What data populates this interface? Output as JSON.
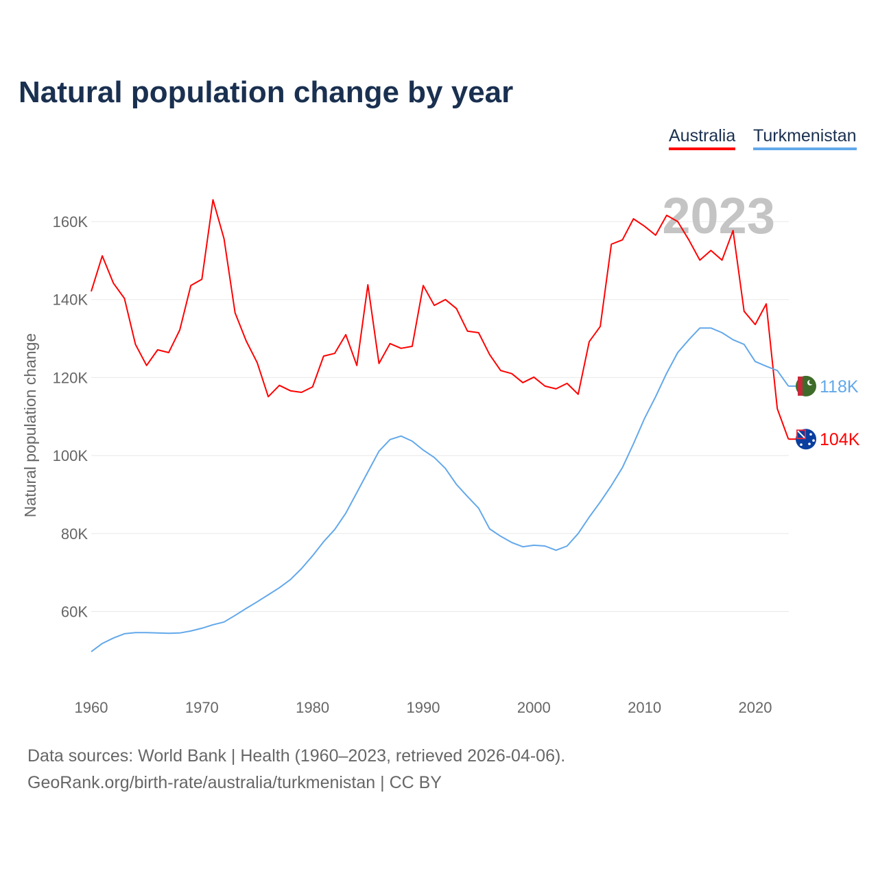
{
  "title": "Natural population change by year",
  "footer": {
    "line1": "Data sources: World Bank | Health (1960–2023, retrieved 2026-04-06).",
    "line2": "GeoRank.org/birth-rate/australia/turkmenistan | CC BY"
  },
  "chart_data": {
    "type": "line",
    "title": "Natural population change by year",
    "xlabel": "",
    "ylabel": "Natural population change",
    "year_watermark": "2023",
    "xlim": [
      1960,
      2023
    ],
    "ylim": [
      45000,
      170000
    ],
    "x_ticks": [
      1960,
      1970,
      1980,
      1990,
      2000,
      2010,
      2020
    ],
    "y_ticks": [
      {
        "value": 60000,
        "label": "60K"
      },
      {
        "value": 80000,
        "label": "80K"
      },
      {
        "value": 100000,
        "label": "100K"
      },
      {
        "value": 120000,
        "label": "120K"
      },
      {
        "value": 140000,
        "label": "140K"
      },
      {
        "value": 160000,
        "label": "160K"
      }
    ],
    "grid": true,
    "legend_position": "top-right",
    "x": [
      1960,
      1961,
      1962,
      1963,
      1964,
      1965,
      1966,
      1967,
      1968,
      1969,
      1970,
      1971,
      1972,
      1973,
      1974,
      1975,
      1976,
      1977,
      1978,
      1979,
      1980,
      1981,
      1982,
      1983,
      1984,
      1985,
      1986,
      1987,
      1988,
      1989,
      1990,
      1991,
      1992,
      1993,
      1994,
      1995,
      1996,
      1997,
      1998,
      1999,
      2000,
      2001,
      2002,
      2003,
      2004,
      2005,
      2006,
      2007,
      2008,
      2009,
      2010,
      2011,
      2012,
      2013,
      2014,
      2015,
      2016,
      2017,
      2018,
      2019,
      2020,
      2021,
      2022,
      2023
    ],
    "series": [
      {
        "name": "Australia",
        "color": "#ff0000",
        "end_label": "104K",
        "flag": "australia-flag",
        "values": [
          142100,
          151200,
          144200,
          140300,
          128500,
          123100,
          127100,
          126400,
          132200,
          143600,
          145200,
          165600,
          155600,
          136600,
          129400,
          123800,
          115100,
          118000,
          116600,
          116200,
          117600,
          125500,
          126200,
          131000,
          123100,
          143800,
          123600,
          128700,
          127500,
          128000,
          143600,
          138500,
          140000,
          137700,
          131900,
          131500,
          125900,
          121800,
          121000,
          118700,
          120100,
          117800,
          117100,
          118500,
          115700,
          129200,
          133100,
          154200,
          155300,
          160700,
          158800,
          156500,
          161600,
          160000,
          155300,
          150100,
          152600,
          150100,
          157700,
          137000,
          133600,
          138900,
          112000,
          104200
        ]
      },
      {
        "name": "Turkmenistan",
        "color": "#62a8ea",
        "end_label": "118K",
        "flag": "turkmenistan-flag",
        "values": [
          49700,
          51800,
          53200,
          54300,
          54600,
          54600,
          54500,
          54400,
          54500,
          55000,
          55700,
          56600,
          57300,
          59000,
          60800,
          62500,
          64300,
          66100,
          68200,
          71000,
          74300,
          77900,
          81000,
          85200,
          90500,
          95800,
          101100,
          104100,
          105000,
          103700,
          101400,
          99500,
          96700,
          92600,
          89500,
          86500,
          81200,
          79300,
          77700,
          76600,
          77000,
          76800,
          75700,
          76800,
          80000,
          84200,
          88100,
          92300,
          96900,
          103000,
          109500,
          115100,
          121100,
          126400,
          129700,
          132700,
          132700,
          131500,
          129700,
          128500,
          124100,
          122900,
          121800,
          117800
        ]
      }
    ]
  }
}
